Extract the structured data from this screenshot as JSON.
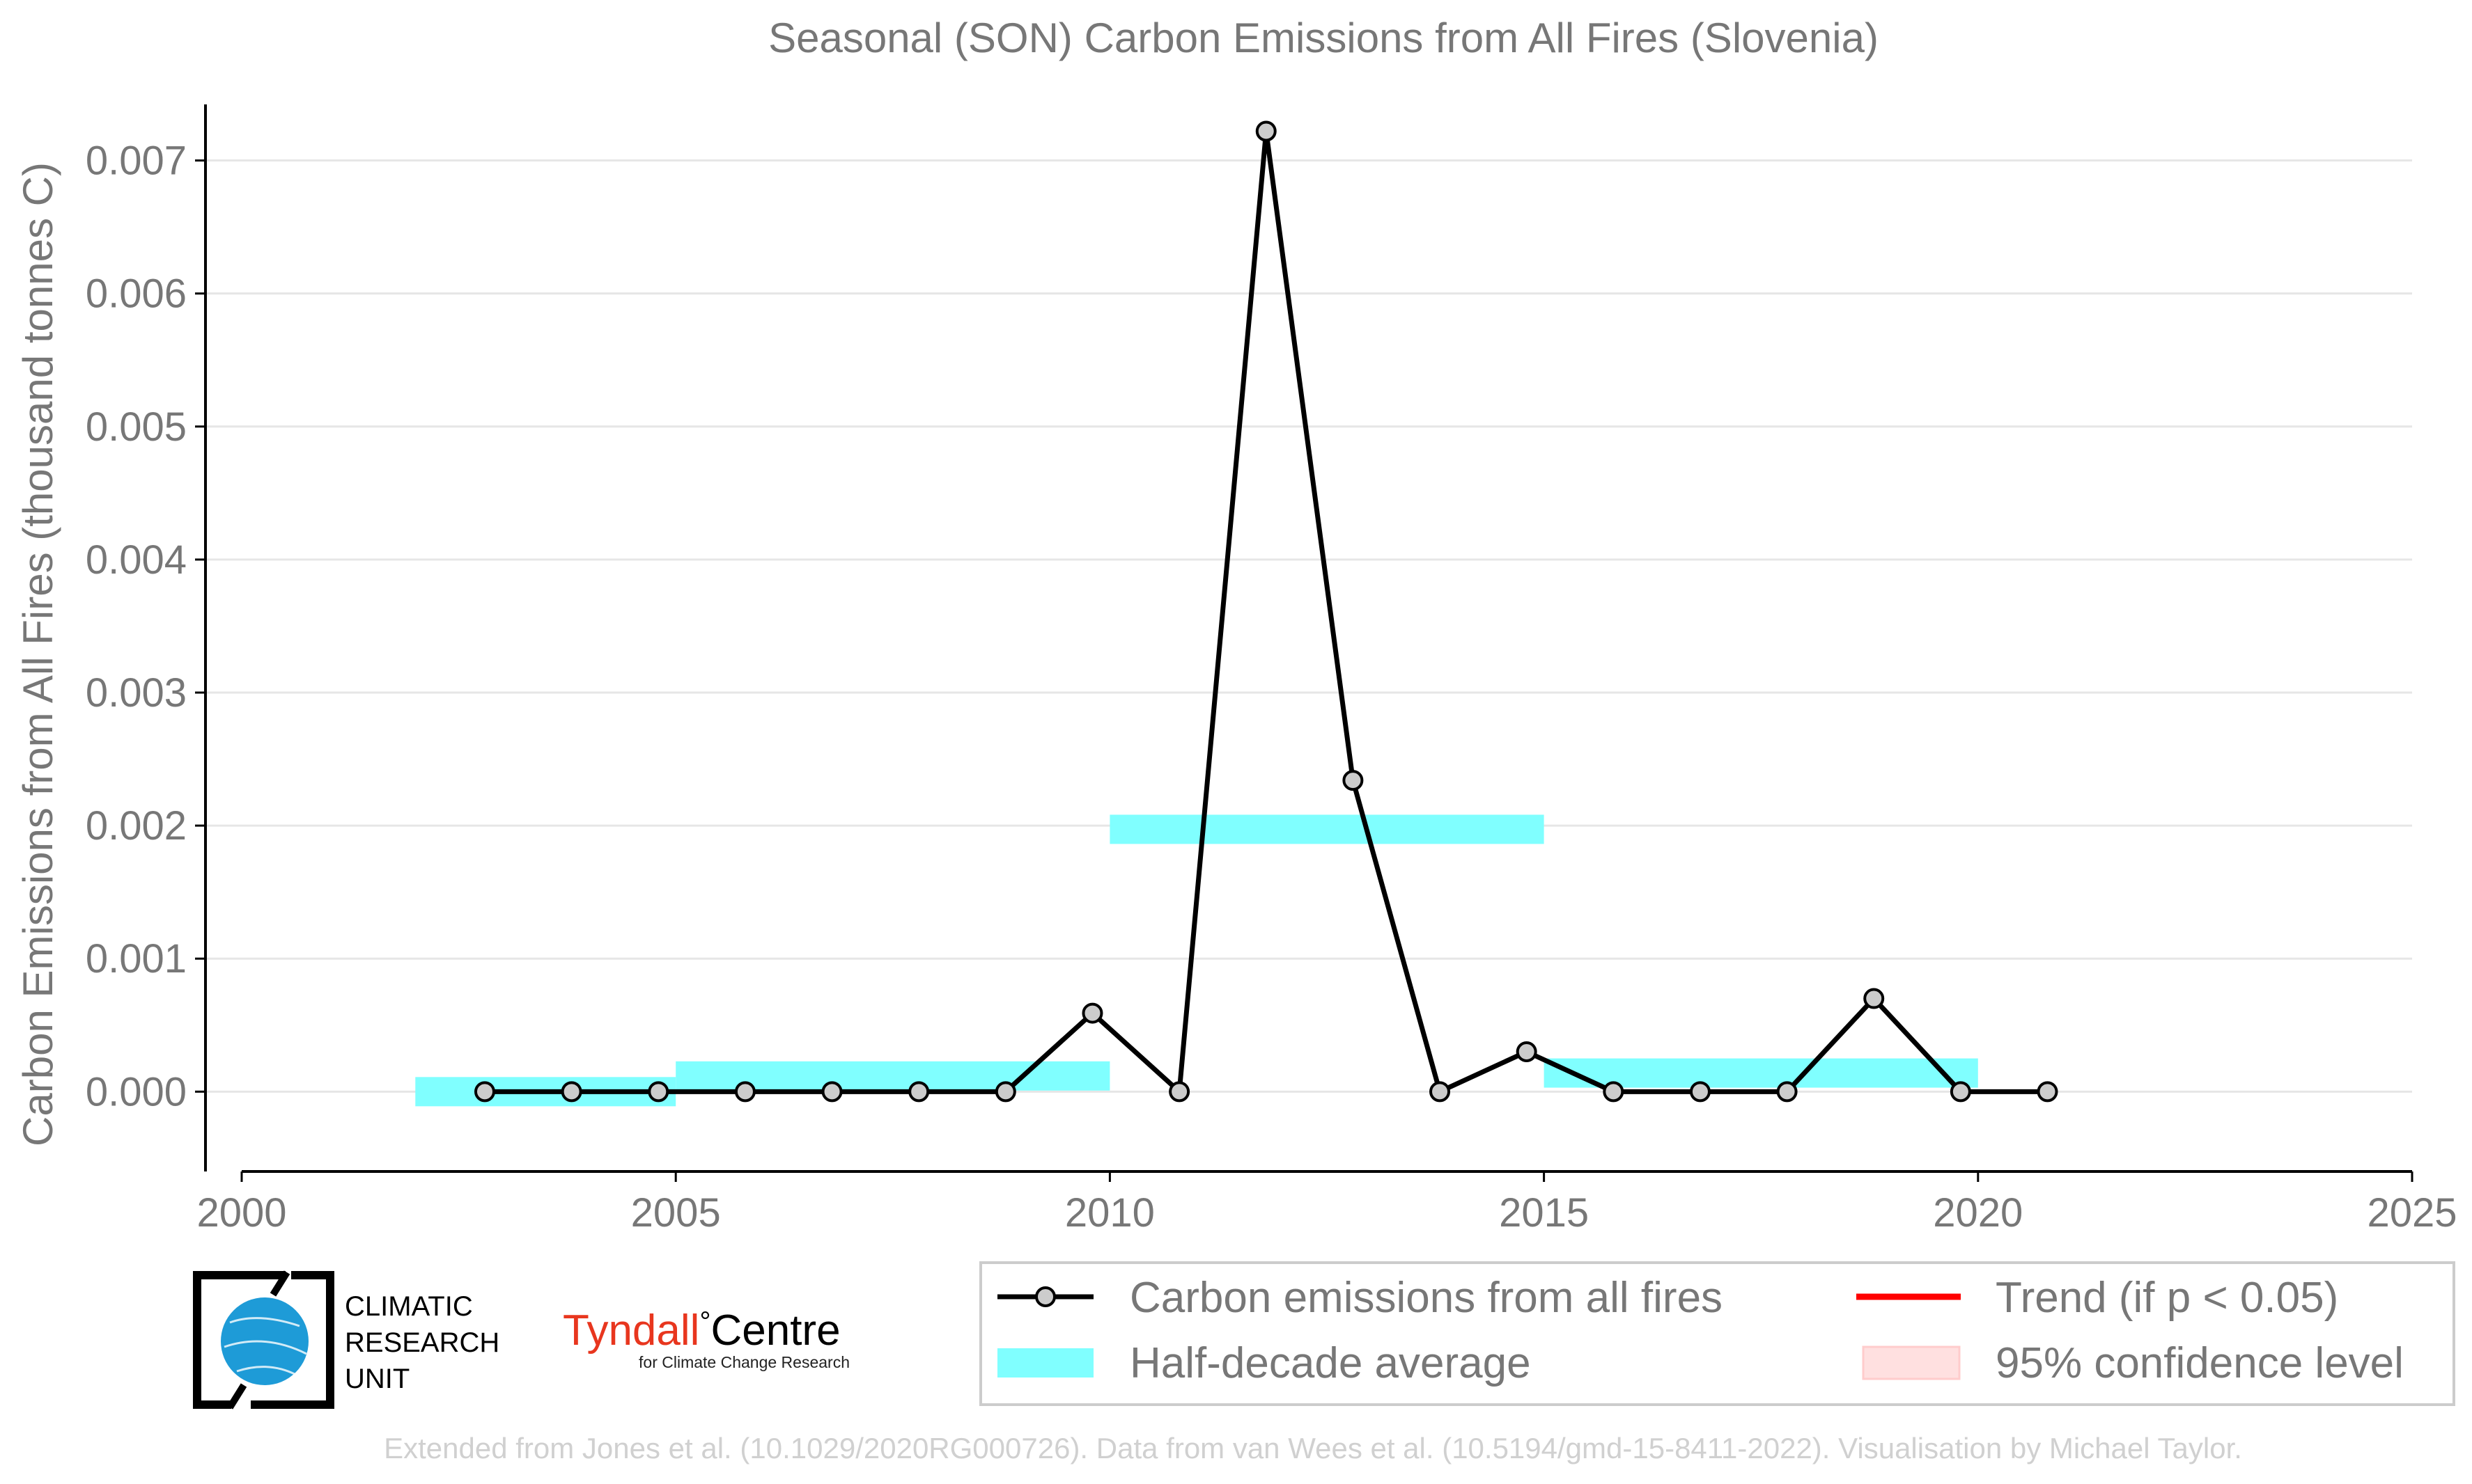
{
  "chart_data": {
    "type": "line",
    "title": "Seasonal (SON) Carbon Emissions from All Fires (Slovenia)",
    "xlabel": "",
    "ylabel": "Carbon Emissions from All Fires (thousand tonnes C)",
    "xlim": [
      2000,
      2025
    ],
    "ylim": [
      -0.0006,
      0.0075
    ],
    "x_ticks": [
      2000,
      2005,
      2010,
      2015,
      2020,
      2025
    ],
    "y_ticks": [
      0.0,
      0.001,
      0.002,
      0.003,
      0.004,
      0.005,
      0.006,
      0.007
    ],
    "y_tick_labels": [
      "0.000",
      "0.001",
      "0.002",
      "0.003",
      "0.004",
      "0.005",
      "0.006",
      "0.007"
    ],
    "grid": "horizontal",
    "series": [
      {
        "name": "Carbon emissions from all fires",
        "color": "#000000",
        "marker_fill": "#cccccc",
        "x": [
          2002.8,
          2003.8,
          2004.8,
          2005.8,
          2006.8,
          2007.8,
          2008.8,
          2009.8,
          2010.8,
          2011.8,
          2012.8,
          2013.8,
          2014.8,
          2015.8,
          2016.8,
          2017.8,
          2018.8,
          2019.8,
          2020.8
        ],
        "values": [
          0.0,
          0.0,
          0.0,
          0.0,
          0.0,
          0.0,
          0.0,
          0.00059,
          0.0,
          0.00722,
          0.00234,
          0.0,
          0.0003,
          0.0,
          0.0,
          0.0,
          0.0007,
          0.0,
          0.0
        ]
      }
    ],
    "half_decade_average": {
      "name": "Half-decade average",
      "color": "#80ffff",
      "bands": [
        {
          "x_start": 2002,
          "x_end": 2005,
          "value": 0.0
        },
        {
          "x_start": 2005,
          "x_end": 2010,
          "value": 0.000118
        },
        {
          "x_start": 2010,
          "x_end": 2015,
          "value": 0.001972
        },
        {
          "x_start": 2015,
          "x_end": 2020,
          "value": 0.00014
        }
      ]
    },
    "legend": {
      "placement": "bottom-right",
      "entries": [
        {
          "label": "Carbon emissions from all fires",
          "kind": "line-marker",
          "color": "#000000"
        },
        {
          "label": "Trend (if p < 0.05)",
          "kind": "line",
          "color": "#ff0000"
        },
        {
          "label": "Half-decade average",
          "kind": "band",
          "color": "#80ffff"
        },
        {
          "label": "95% confidence level",
          "kind": "band",
          "color": "#ffe0e0"
        }
      ]
    },
    "credit": "Extended from Jones et al. (10.1029/2020RG000726). Data from van Wees et al. (10.5194/gmd-15-8411-2022). Visualisation by Michael Taylor."
  },
  "logos": {
    "cru": {
      "lines": [
        "CLIMATIC",
        "RESEARCH",
        "UNIT"
      ],
      "globe_color": "#1e9bd7"
    },
    "tyndall": {
      "word1": "Tyndall",
      "degree": "°",
      "word2": "Centre",
      "subtitle": "for Climate Change Research",
      "word1_color": "#e8361e",
      "word2_color": "#000000"
    }
  }
}
